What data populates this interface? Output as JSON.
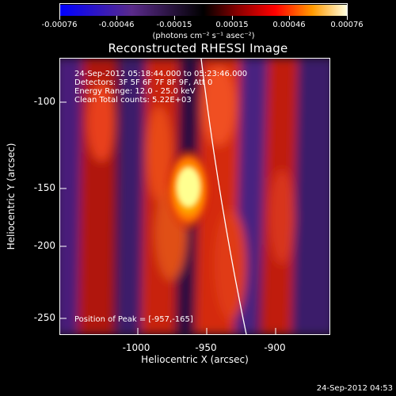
{
  "colorbar": {
    "tick_labels": [
      "-0.00076",
      "-0.00046",
      "-0.00015",
      "0.00015",
      "0.00046",
      "0.00076"
    ],
    "units": "(photons cm⁻² s⁻¹ asec⁻²)"
  },
  "plot": {
    "title": "Reconstructed RHESSI Image",
    "info_lines": [
      "24-Sep-2012 05:18:44.000 to 05:23:46.000",
      "Detectors: 3F 5F 6F 7F 8F 9F, Att 0",
      "Energy Range: 12.0 - 25.0 keV",
      "Clean    Total counts: 5.22E+03"
    ],
    "peak_label": "Position of Peak = [-957,-165]",
    "xlabel": "Heliocentric X (arcsec)",
    "ylabel": "Heliocentric Y (arcsec)",
    "x_ticks": [
      "-1000",
      "-950",
      "-900"
    ],
    "y_ticks": [
      "-100",
      "-150",
      "-200",
      "-250"
    ]
  },
  "footer": {
    "timestamp": "24-Sep-2012 04:53"
  },
  "colors": {
    "limb_line": "#ffffff",
    "background": "#000000"
  }
}
